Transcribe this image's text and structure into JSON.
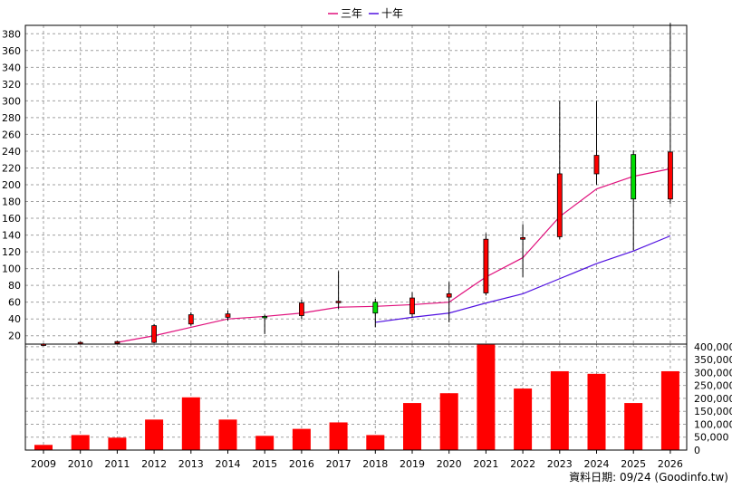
{
  "legend": {
    "ma3_label": "三年",
    "ma10_label": "十年"
  },
  "source_label": "資料日期: 09/24  (Goodinfo.tw)",
  "colors": {
    "ma3": "#e0107c",
    "ma10": "#5010e0",
    "candle_up": "#ff0000",
    "candle_down": "#00dd00",
    "volume": "#ff0000",
    "grid": "#a0a0a0"
  },
  "chart_data": {
    "type": "candlestick+bar",
    "categories": [
      "2009",
      "2010",
      "2011",
      "2012",
      "2013",
      "2014",
      "2015",
      "2016",
      "2017",
      "2018",
      "2019",
      "2020",
      "2021",
      "2022",
      "2023",
      "2024",
      "2025",
      "2026"
    ],
    "price_axis": {
      "ylim": [
        10,
        390
      ],
      "ticks": [
        20,
        40,
        60,
        80,
        100,
        120,
        140,
        160,
        180,
        200,
        220,
        240,
        260,
        280,
        300,
        320,
        340,
        360,
        380
      ]
    },
    "volume_axis": {
      "ylim": [
        0,
        410000
      ],
      "ticks": [
        "0",
        "50,000",
        "100,000",
        "150,000",
        "200,000",
        "250,000",
        "300,000",
        "350,000",
        "400,000"
      ],
      "tick_values": [
        0,
        50000,
        100000,
        150000,
        200000,
        250000,
        300000,
        350000,
        400000
      ]
    },
    "candles": [
      {
        "year": "2009",
        "open": 10,
        "high": 11,
        "low": 8,
        "close": 10
      },
      {
        "year": "2010",
        "open": 11,
        "high": 13,
        "low": 10,
        "close": 12
      },
      {
        "year": "2011",
        "open": 11,
        "high": 14,
        "low": 10,
        "close": 13
      },
      {
        "year": "2012",
        "open": 12,
        "high": 34,
        "low": 11,
        "close": 32
      },
      {
        "year": "2013",
        "open": 34,
        "high": 48,
        "low": 32,
        "close": 45
      },
      {
        "year": "2014",
        "open": 42,
        "high": 50,
        "low": 38,
        "close": 46
      },
      {
        "year": "2015",
        "open": 43,
        "high": 45,
        "low": 22,
        "close": 42
      },
      {
        "year": "2016",
        "open": 44,
        "high": 63,
        "low": 40,
        "close": 59
      },
      {
        "year": "2017",
        "open": 60,
        "high": 97,
        "low": 52,
        "close": 61
      },
      {
        "year": "2018",
        "open": 60,
        "high": 64,
        "low": 30,
        "close": 47
      },
      {
        "year": "2019",
        "open": 46,
        "high": 72,
        "low": 42,
        "close": 65
      },
      {
        "year": "2020",
        "open": 66,
        "high": 84,
        "low": 36,
        "close": 70
      },
      {
        "year": "2021",
        "open": 71,
        "high": 142,
        "low": 68,
        "close": 135
      },
      {
        "year": "2022",
        "open": 135,
        "high": 153,
        "low": 90,
        "close": 137
      },
      {
        "year": "2023",
        "open": 138,
        "high": 300,
        "low": 135,
        "close": 213
      },
      {
        "year": "2024",
        "open": 213,
        "high": 300,
        "low": 200,
        "close": 235
      },
      {
        "year": "2025",
        "open": 236,
        "high": 241,
        "low": 122,
        "close": 183
      },
      {
        "year": "2026",
        "open": 183,
        "high": 393,
        "low": 177,
        "close": 239
      }
    ],
    "series": [
      {
        "name": "三年",
        "x": [
          "2011",
          "2012",
          "2013",
          "2014",
          "2015",
          "2016",
          "2017",
          "2018",
          "2019",
          "2020",
          "2021",
          "2022",
          "2023",
          "2024",
          "2025",
          "2026"
        ],
        "values": [
          12,
          20,
          30,
          40,
          43,
          47,
          54,
          55,
          57,
          60,
          90,
          113,
          162,
          195,
          210,
          219
        ]
      },
      {
        "name": "十年",
        "x": [
          "2018",
          "2019",
          "2020",
          "2021",
          "2022",
          "2023",
          "2024",
          "2025",
          "2026"
        ],
        "values": [
          36,
          42,
          47,
          59,
          70,
          88,
          106,
          121,
          139
        ]
      }
    ],
    "volume": [
      20000,
      58000,
      48000,
      118000,
      204000,
      118000,
      55000,
      82000,
      107000,
      58000,
      182000,
      220000,
      408000,
      238000,
      305000,
      295000,
      182000,
      305000
    ],
    "grid": true,
    "legend_position": "top-center"
  }
}
